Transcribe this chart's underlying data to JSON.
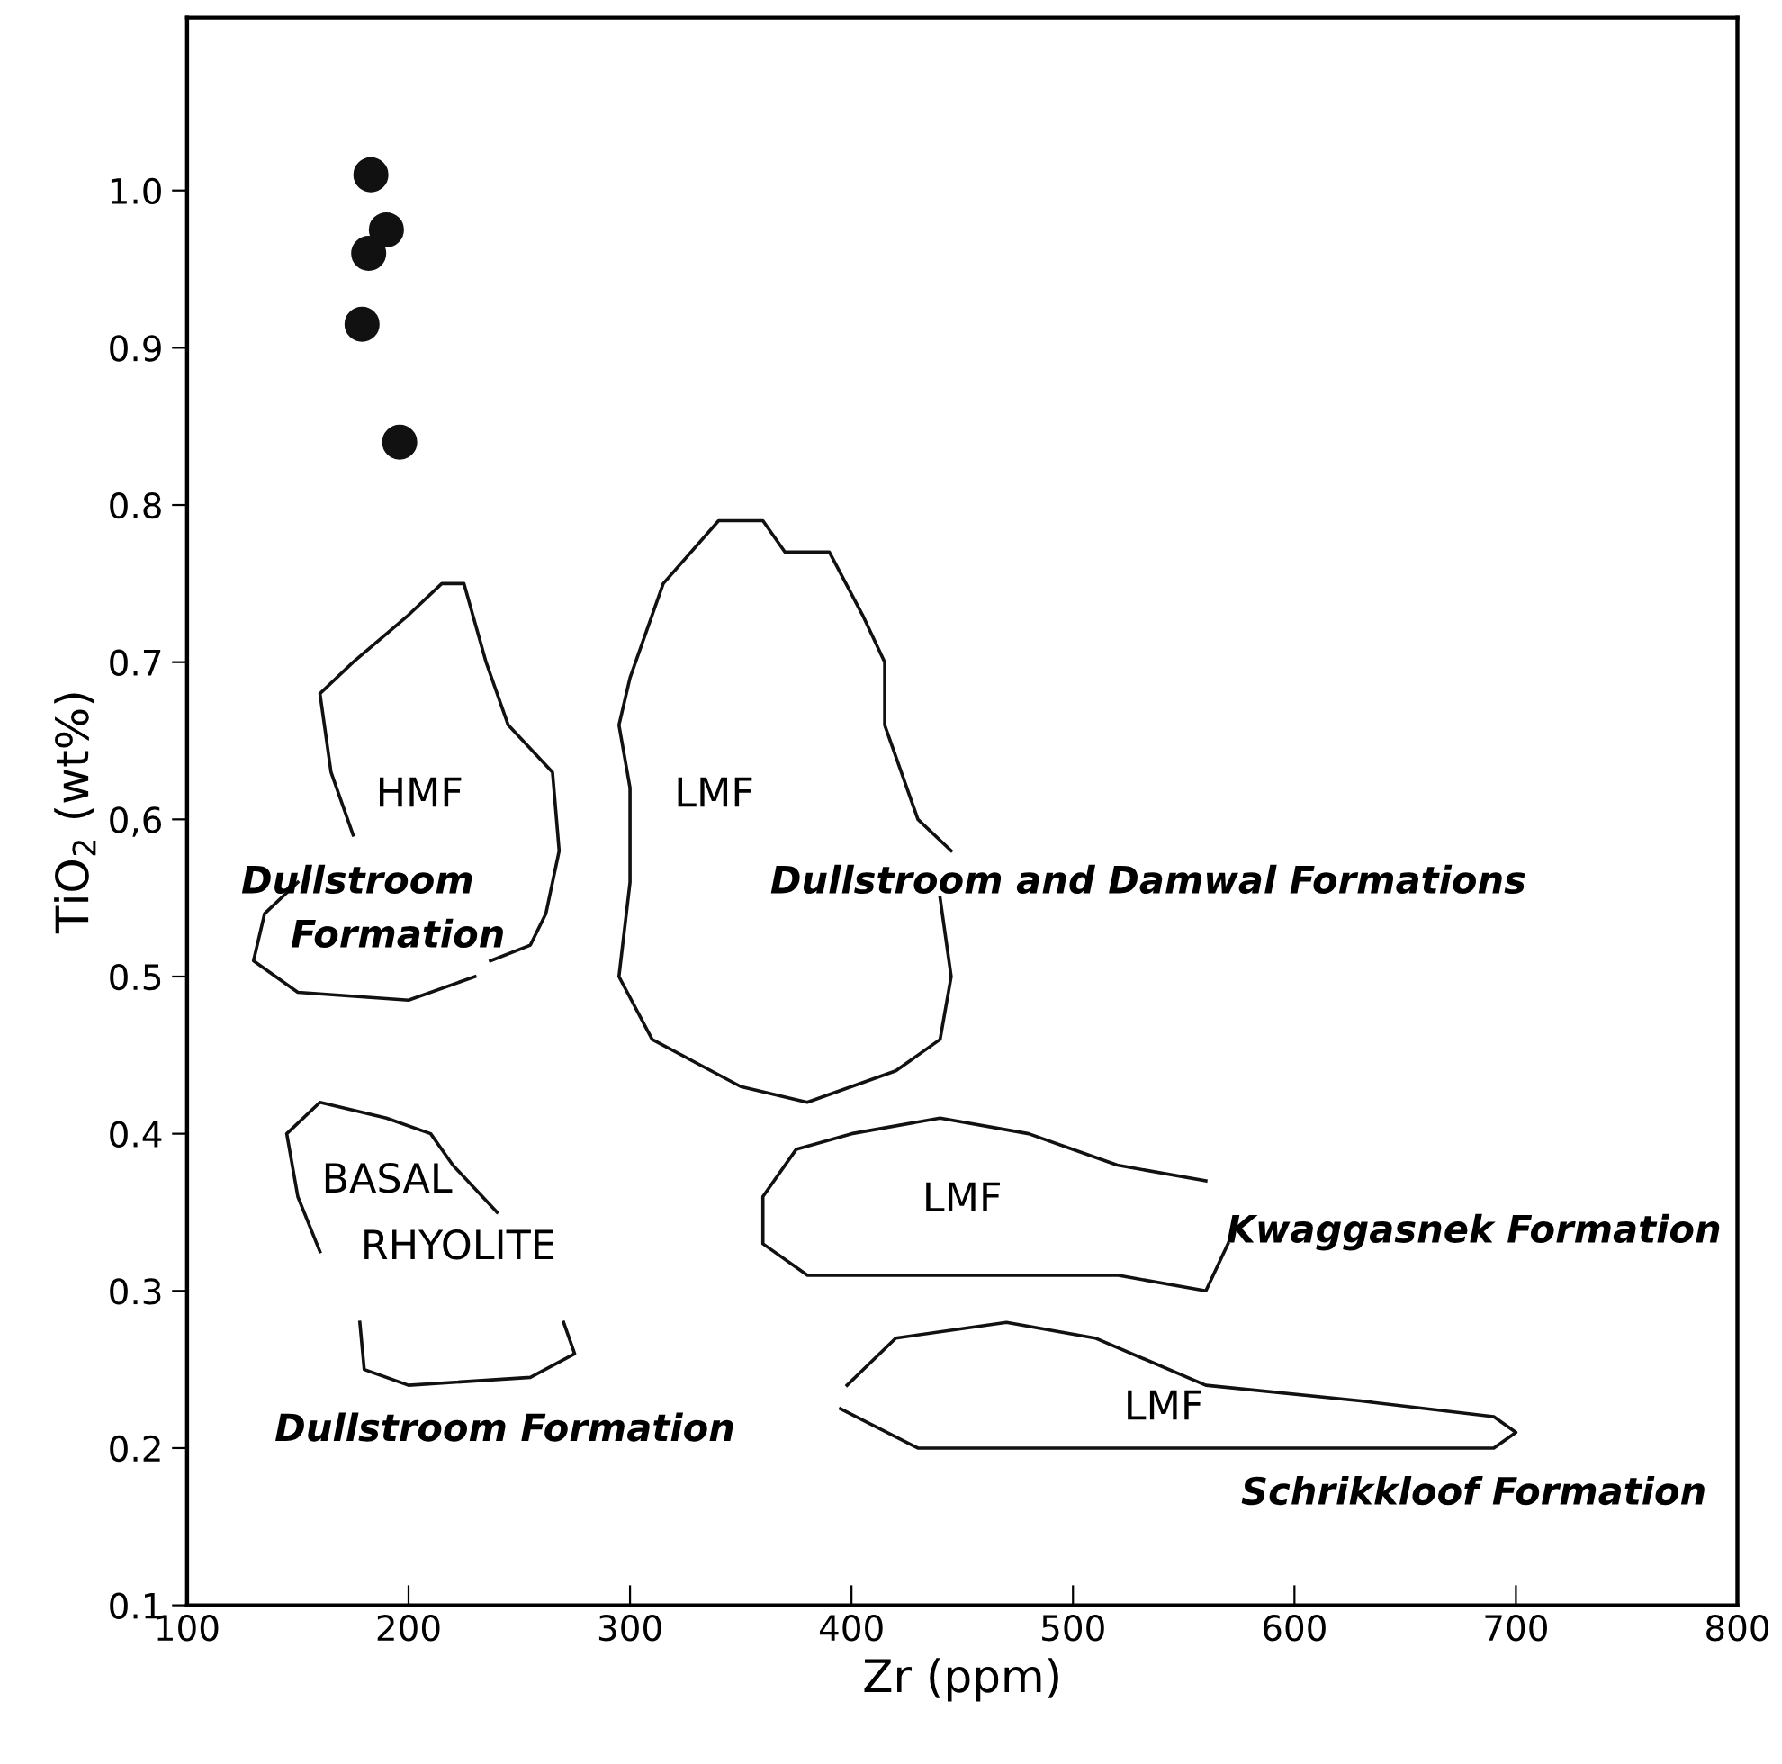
{
  "chart_data": {
    "type": "line",
    "xlabel": "Zr (ppm)",
    "ylabel": "TiO$_{2}$ (wt%)",
    "xlim": [
      100,
      800
    ],
    "ylim": [
      0.1,
      1.11
    ],
    "xticks": [
      100,
      200,
      300,
      400,
      500,
      600,
      700,
      800
    ],
    "yticks": [
      0.1,
      0.2,
      0.3,
      0.4,
      0.5,
      {
        "value": 0.6,
        "label": "0,6"
      },
      0.7,
      0.8,
      0.9,
      {
        "value": 1.0,
        "label": "1.0"
      }
    ],
    "grid": false,
    "legend": false,
    "marker": "none",
    "line_style": "solid",
    "series": [
      {
        "type": "scatter",
        "marker": "circle",
        "color": "#111111",
        "x": [
          183,
          190,
          182,
          179,
          196
        ],
        "values": [
          1.01,
          0.975,
          0.96,
          0.915,
          0.84
        ]
      },
      {
        "color": "#111111",
        "x": [
          175,
          165,
          160,
          175,
          200,
          215,
          225,
          235,
          245,
          265,
          268,
          262,
          255,
          237,
          null,
          230,
          200,
          150,
          130,
          135,
          150
        ],
        "values": [
          0.59,
          0.63,
          0.68,
          0.7,
          0.73,
          0.75,
          0.75,
          0.7,
          0.66,
          0.63,
          0.58,
          0.54,
          0.52,
          0.51,
          null,
          0.5,
          0.485,
          0.49,
          0.51,
          0.54,
          0.56
        ]
      },
      {
        "color": "#111111",
        "x": [
          445,
          430,
          415,
          415,
          405,
          390,
          370,
          360,
          340,
          315,
          300,
          295,
          300,
          300,
          295,
          310,
          350,
          380,
          420,
          440,
          445,
          440
        ],
        "values": [
          0.58,
          0.6,
          0.66,
          0.7,
          0.73,
          0.77,
          0.77,
          0.79,
          0.79,
          0.75,
          0.69,
          0.66,
          0.62,
          0.56,
          0.5,
          0.46,
          0.43,
          0.42,
          0.44,
          0.46,
          0.5,
          0.55
        ]
      },
      {
        "color": "#111111",
        "x": [
          560,
          520,
          480,
          440,
          400,
          375,
          360,
          360,
          380,
          440,
          520,
          560,
          570
        ],
        "values": [
          0.37,
          0.38,
          0.4,
          0.41,
          0.4,
          0.39,
          0.36,
          0.33,
          0.31,
          0.31,
          0.31,
          0.3,
          0.33
        ]
      },
      {
        "color": "#111111",
        "x": [
          398,
          420,
          470,
          510,
          560,
          630,
          690,
          700,
          690,
          600,
          500,
          430,
          395
        ],
        "values": [
          0.24,
          0.27,
          0.28,
          0.27,
          0.24,
          0.23,
          0.22,
          0.21,
          0.2,
          0.2,
          0.2,
          0.2,
          0.225
        ]
      },
      {
        "color": "#111111",
        "x": [
          160,
          150,
          145,
          160,
          190,
          210,
          220,
          240,
          null,
          270,
          275,
          255,
          200,
          180,
          178
        ],
        "values": [
          0.325,
          0.36,
          0.4,
          0.42,
          0.41,
          0.4,
          0.38,
          0.35,
          null,
          0.28,
          0.26,
          0.245,
          0.24,
          0.25,
          0.28
        ]
      }
    ],
    "annotations": [
      "HMF",
      "Dullstroom",
      "Formation",
      "LMF",
      "Dullstroom and Damwal Formations",
      "BASAL",
      "RHYOLITE",
      "Dullstroom Formation",
      "LMF",
      "Kwaggasnek Formation",
      "LMF",
      "Schrikkloof Formation"
    ]
  }
}
